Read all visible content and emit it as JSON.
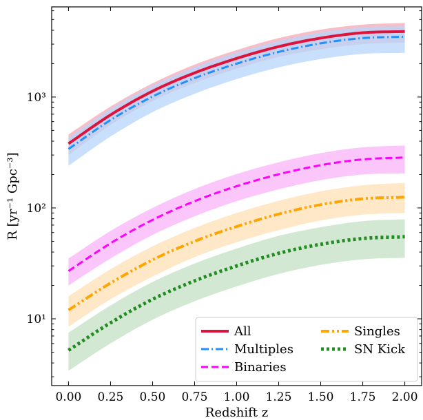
{
  "chart_data": {
    "type": "line",
    "xlabel": "Redshift z",
    "ylabel": "R [yr⁻¹ Gpc⁻³]",
    "xlim": [
      -0.1,
      2.1
    ],
    "ylim": [
      2.5,
      6500
    ],
    "yscale": "log",
    "x_ticks": [
      0.0,
      0.25,
      0.5,
      0.75,
      1.0,
      1.25,
      1.5,
      1.75,
      2.0
    ],
    "x_tick_labels": [
      "0.00",
      "0.25",
      "0.50",
      "0.75",
      "1.00",
      "1.25",
      "1.50",
      "1.75",
      "2.00"
    ],
    "y_ticks": [
      10,
      100,
      1000
    ],
    "y_tick_labels": [
      "10¹",
      "10²",
      "10³"
    ],
    "grid": false,
    "legend_position": "bottom-right",
    "legend_columns": 2,
    "x": [
      0.0,
      0.25,
      0.5,
      0.75,
      1.0,
      1.25,
      1.5,
      1.75,
      2.0
    ],
    "series": [
      {
        "name": "All",
        "color": "#dc143c",
        "style": "solid",
        "values": [
          380,
          690,
          1130,
          1650,
          2230,
          2850,
          3400,
          3800,
          3900
        ],
        "band_low": [
          300,
          560,
          920,
          1340,
          1800,
          2300,
          2700,
          3000,
          3100
        ],
        "band_high": [
          460,
          820,
          1330,
          1960,
          2650,
          3400,
          4050,
          4500,
          4650
        ],
        "band_color": "#f4a8b5"
      },
      {
        "name": "Multiples",
        "color": "#1e90ff",
        "style": "dashdot",
        "values": [
          340,
          620,
          1010,
          1480,
          2000,
          2550,
          3050,
          3400,
          3500
        ],
        "band_low": [
          240,
          440,
          730,
          1070,
          1450,
          1850,
          2200,
          2450,
          2500
        ],
        "band_high": [
          430,
          780,
          1270,
          1860,
          2520,
          3200,
          3830,
          4250,
          4350
        ],
        "band_color": "#b7d6fb"
      },
      {
        "name": "Binaries",
        "color": "#ff00ff",
        "style": "dashed",
        "values": [
          27,
          48,
          78,
          115,
          157,
          201,
          243,
          274,
          285
        ],
        "band_low": [
          20,
          35,
          57,
          84,
          115,
          147,
          178,
          200,
          205
        ],
        "band_high": [
          35,
          62,
          100,
          148,
          202,
          258,
          312,
          352,
          365
        ],
        "band_color": "#fab4fa"
      },
      {
        "name": "Singles",
        "color": "#ffa500",
        "style": "dashdotdot",
        "values": [
          12,
          21,
          34,
          50,
          68,
          88,
          107,
          121,
          125
        ],
        "band_low": [
          8.5,
          15,
          24,
          36,
          49,
          63,
          77,
          87,
          90
        ],
        "band_high": [
          16,
          28,
          45,
          66,
          90,
          116,
          141,
          160,
          168
        ],
        "band_color": "#fde0b4"
      },
      {
        "name": "SN Kick",
        "color": "#228b22",
        "style": "dotted",
        "values": [
          5.2,
          9.2,
          15,
          22,
          30,
          39,
          47,
          53,
          55
        ],
        "band_low": [
          3.4,
          6.0,
          9.8,
          14.4,
          19.6,
          25.4,
          30.6,
          34.4,
          35.5
        ],
        "band_high": [
          7.5,
          13.2,
          21.5,
          31.5,
          43,
          56,
          67,
          76,
          79
        ],
        "band_color": "#c3e0c3"
      }
    ]
  }
}
